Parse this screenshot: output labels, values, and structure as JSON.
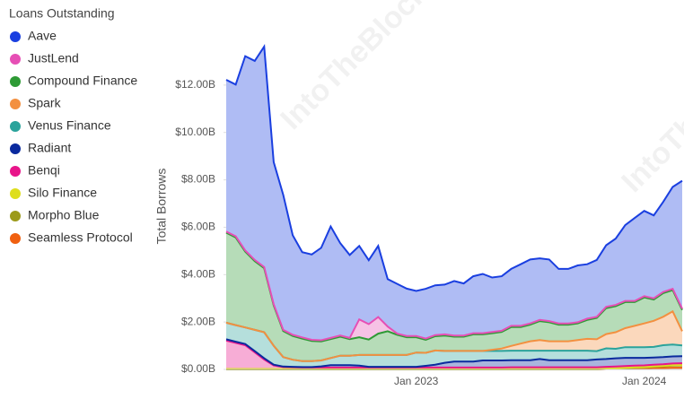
{
  "chart_data": {
    "type": "stacked-area",
    "legend_title": "Loans Outstanding",
    "y_label": "Total Borrows",
    "watermark": "IntoTheBlock",
    "categories": [
      null,
      null,
      null,
      null,
      null,
      null,
      null,
      null,
      null,
      null,
      null,
      null,
      null,
      null,
      null,
      null,
      null,
      null,
      null,
      null,
      "Jan 2023",
      null,
      null,
      null,
      null,
      null,
      null,
      null,
      null,
      null,
      null,
      null,
      null,
      null,
      null,
      null,
      null,
      null,
      null,
      null,
      null,
      null,
      null,
      null,
      "Jan 2024",
      null,
      null,
      null,
      null
    ],
    "ylim": [
      0,
      14
    ],
    "yticks": [
      {
        "value": 0,
        "label": "$0.00B"
      },
      {
        "value": 2,
        "label": "$2.00B"
      },
      {
        "value": 4,
        "label": "$4.00B"
      },
      {
        "value": 6,
        "label": "$6.00B"
      },
      {
        "value": 8,
        "label": "$8.00B"
      },
      {
        "value": 10,
        "label": "$10.00B"
      },
      {
        "value": 12,
        "label": "$12.00B"
      }
    ],
    "series": [
      {
        "name": "Aave",
        "color": "#1a3fe0",
        "values": [
          6.4,
          6.4,
          8.2,
          8.4,
          9.3,
          6.0,
          5.7,
          4.2,
          3.6,
          3.6,
          3.9,
          4.7,
          3.9,
          3.5,
          3.1,
          2.7,
          3.0,
          2.0,
          2.1,
          2.0,
          1.9,
          2.1,
          2.1,
          2.1,
          2.3,
          2.2,
          2.4,
          2.5,
          2.3,
          2.3,
          2.4,
          2.6,
          2.7,
          2.6,
          2.6,
          2.3,
          2.3,
          2.4,
          2.3,
          2.4,
          2.6,
          2.8,
          3.2,
          3.5,
          3.6,
          3.5,
          3.8,
          4.3,
          5.4
        ]
      },
      {
        "name": "JustLend",
        "color": "#e64fb5",
        "values": [
          0.05,
          0.05,
          0.05,
          0.05,
          0.05,
          0.05,
          0.05,
          0.05,
          0.05,
          0.05,
          0.05,
          0.05,
          0.05,
          0.05,
          0.75,
          0.65,
          0.7,
          0.2,
          0.05,
          0.05,
          0.05,
          0.05,
          0.05,
          0.05,
          0.05,
          0.05,
          0.05,
          0.05,
          0.05,
          0.05,
          0.05,
          0.05,
          0.05,
          0.05,
          0.05,
          0.05,
          0.05,
          0.05,
          0.05,
          0.05,
          0.05,
          0.05,
          0.05,
          0.05,
          0.05,
          0.05,
          0.05,
          0.05,
          0.05
        ]
      },
      {
        "name": "Compound Finance",
        "color": "#2e9a35",
        "values": [
          3.8,
          3.7,
          3.2,
          2.9,
          2.7,
          1.7,
          1.1,
          1.0,
          0.95,
          0.85,
          0.8,
          0.8,
          0.8,
          0.7,
          0.75,
          0.65,
          0.9,
          1.0,
          0.85,
          0.75,
          0.65,
          0.55,
          0.6,
          0.65,
          0.6,
          0.6,
          0.7,
          0.7,
          0.7,
          0.7,
          0.8,
          0.7,
          0.7,
          0.8,
          0.8,
          0.7,
          0.7,
          0.7,
          0.8,
          0.9,
          1.1,
          1.1,
          1.1,
          1.0,
          1.1,
          0.9,
          1.0,
          0.9,
          0.9
        ]
      },
      {
        "name": "Spark",
        "color": "#f39040",
        "values": [
          0,
          0,
          0,
          0,
          0,
          0,
          0,
          0,
          0,
          0,
          0,
          0,
          0,
          0,
          0,
          0,
          0,
          0,
          0,
          0,
          0,
          0,
          0,
          0,
          0,
          0,
          0,
          0,
          0.05,
          0.1,
          0.2,
          0.3,
          0.4,
          0.45,
          0.4,
          0.4,
          0.4,
          0.45,
          0.5,
          0.5,
          0.6,
          0.7,
          0.8,
          0.9,
          1.0,
          1.1,
          1.2,
          1.4,
          0.6
        ]
      },
      {
        "name": "Venus Finance",
        "color": "#2aa39b",
        "values": [
          0.7,
          0.7,
          0.7,
          0.9,
          1.1,
          0.8,
          0.4,
          0.3,
          0.25,
          0.25,
          0.25,
          0.3,
          0.4,
          0.4,
          0.45,
          0.5,
          0.5,
          0.5,
          0.5,
          0.5,
          0.6,
          0.55,
          0.6,
          0.5,
          0.45,
          0.45,
          0.45,
          0.4,
          0.4,
          0.4,
          0.4,
          0.4,
          0.4,
          0.35,
          0.4,
          0.4,
          0.4,
          0.4,
          0.4,
          0.35,
          0.45,
          0.4,
          0.45,
          0.45,
          0.45,
          0.45,
          0.5,
          0.5,
          0.45
        ]
      },
      {
        "name": "Radiant",
        "color": "#0a2a9e",
        "values": [
          0.05,
          0.05,
          0.05,
          0.05,
          0.05,
          0.03,
          0.02,
          0.02,
          0.02,
          0.02,
          0.05,
          0.1,
          0.1,
          0.1,
          0.08,
          0.03,
          0.03,
          0.03,
          0.03,
          0.03,
          0.03,
          0.07,
          0.12,
          0.2,
          0.25,
          0.25,
          0.25,
          0.3,
          0.3,
          0.3,
          0.3,
          0.3,
          0.3,
          0.35,
          0.3,
          0.3,
          0.3,
          0.3,
          0.3,
          0.33,
          0.33,
          0.35,
          0.35,
          0.33,
          0.32,
          0.3,
          0.3,
          0.3,
          0.3
        ]
      },
      {
        "name": "Benqi",
        "color": "#e8158a",
        "values": [
          1.2,
          1.1,
          1.0,
          0.7,
          0.4,
          0.15,
          0.08,
          0.07,
          0.06,
          0.06,
          0.06,
          0.06,
          0.06,
          0.06,
          0.06,
          0.06,
          0.06,
          0.06,
          0.06,
          0.06,
          0.06,
          0.06,
          0.06,
          0.06,
          0.06,
          0.06,
          0.06,
          0.06,
          0.06,
          0.06,
          0.07,
          0.07,
          0.07,
          0.07,
          0.07,
          0.07,
          0.07,
          0.07,
          0.07,
          0.07,
          0.07,
          0.07,
          0.07,
          0.07,
          0.07,
          0.07,
          0.07,
          0.07,
          0.07
        ]
      },
      {
        "name": "Silo Finance",
        "color": "#dede1e",
        "values": [
          0.02,
          0.02,
          0.02,
          0.02,
          0.02,
          0.02,
          0.02,
          0.02,
          0.02,
          0.02,
          0.02,
          0.02,
          0.02,
          0.02,
          0.02,
          0.02,
          0.02,
          0.02,
          0.02,
          0.02,
          0.02,
          0.02,
          0.02,
          0.02,
          0.02,
          0.02,
          0.02,
          0.02,
          0.02,
          0.02,
          0.02,
          0.02,
          0.02,
          0.02,
          0.02,
          0.02,
          0.02,
          0.02,
          0.02,
          0.02,
          0.02,
          0.02,
          0.02,
          0.02,
          0.02,
          0.02,
          0.02,
          0.02,
          0.02
        ]
      },
      {
        "name": "Morpho Blue",
        "color": "#9c9a1a",
        "values": [
          0,
          0,
          0,
          0,
          0,
          0,
          0,
          0,
          0,
          0,
          0,
          0,
          0,
          0,
          0,
          0,
          0,
          0,
          0,
          0,
          0,
          0,
          0,
          0,
          0,
          0,
          0,
          0,
          0,
          0,
          0,
          0,
          0,
          0,
          0,
          0,
          0,
          0,
          0,
          0,
          0,
          0,
          0.01,
          0.02,
          0.03,
          0.05,
          0.07,
          0.09,
          0.1
        ]
      },
      {
        "name": "Seamless Protocol",
        "color": "#f06010",
        "values": [
          0,
          0,
          0,
          0,
          0,
          0,
          0,
          0,
          0,
          0,
          0,
          0,
          0,
          0,
          0,
          0,
          0,
          0,
          0,
          0,
          0,
          0,
          0,
          0,
          0,
          0,
          0,
          0,
          0,
          0,
          0,
          0,
          0,
          0,
          0,
          0,
          0,
          0,
          0,
          0,
          0.02,
          0.03,
          0.04,
          0.05,
          0.05,
          0.06,
          0.06,
          0.07,
          0.07
        ]
      }
    ]
  }
}
